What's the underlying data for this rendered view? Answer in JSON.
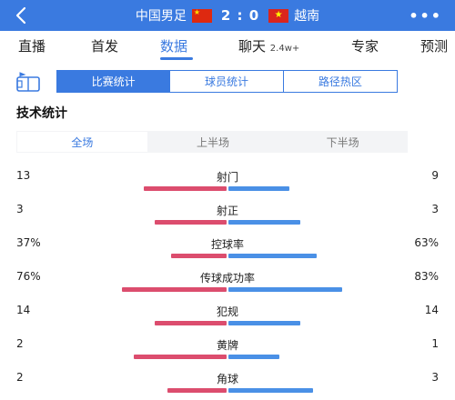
{
  "header": {
    "home_team": "中国男足",
    "away_team": "越南",
    "score": "2 : 0",
    "back_icon": "chevron-left-icon",
    "more_icon": "more-dots-icon",
    "more_text": "•••",
    "home_flag": "china-flag-icon",
    "away_flag": "vietnam-flag-icon",
    "colors": {
      "bar": "#3a7ae0"
    }
  },
  "tabs": [
    {
      "label": "直播"
    },
    {
      "label": "首发"
    },
    {
      "label": "数据",
      "active": true
    },
    {
      "label": "聊天",
      "sub": "2.4w+"
    },
    {
      "label": "专家"
    },
    {
      "label": "预测"
    }
  ],
  "stat_tabs": [
    {
      "label": "比赛统计",
      "active": true
    },
    {
      "label": "球员统计"
    },
    {
      "label": "路径热区"
    }
  ],
  "section_title": "技术统计",
  "periods": [
    {
      "label": "全场",
      "active": true
    },
    {
      "label": "上半场"
    },
    {
      "label": "下半场"
    }
  ],
  "stats": [
    {
      "label": "射门",
      "home": "13",
      "away": "9",
      "home_share": 0.59,
      "away_share": 0.41
    },
    {
      "label": "射正",
      "home": "3",
      "away": "3",
      "home_share": 0.5,
      "away_share": 0.5
    },
    {
      "label": "控球率",
      "home": "37%",
      "away": "63%",
      "home_share": 0.37,
      "away_share": 0.63
    },
    {
      "label": "传球成功率",
      "home": "76%",
      "away": "83%",
      "home_share": 0.76,
      "away_share": 0.83
    },
    {
      "label": "犯规",
      "home": "14",
      "away": "14",
      "home_share": 0.5,
      "away_share": 0.5
    },
    {
      "label": "黄牌",
      "home": "2",
      "away": "1",
      "home_share": 0.67,
      "away_share": 0.33
    },
    {
      "label": "角球",
      "home": "2",
      "away": "3",
      "home_share": 0.4,
      "away_share": 0.6
    }
  ],
  "colors": {
    "home": "#dc4d6e",
    "away": "#4a90e6",
    "accent": "#3a7ae0"
  }
}
